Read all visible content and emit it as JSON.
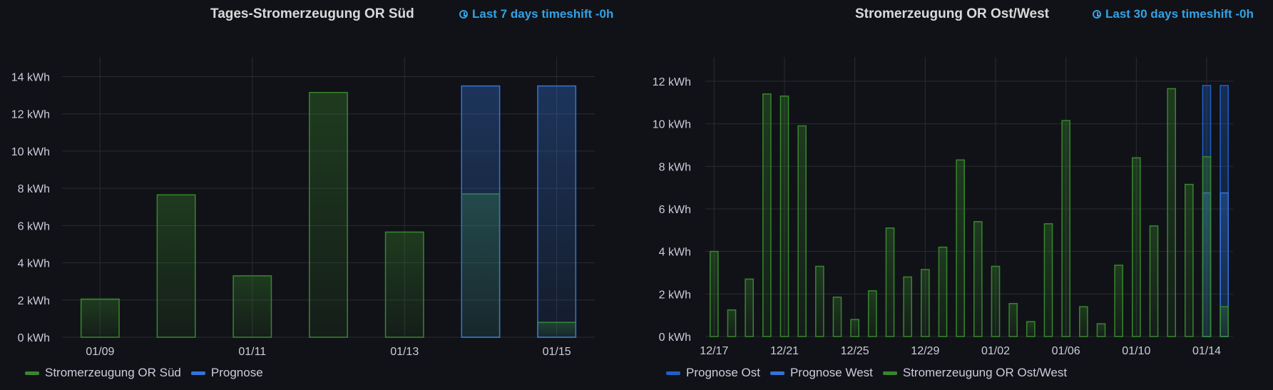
{
  "panels": [
    {
      "title": "Tages-Stromerzeugung OR Süd",
      "timeshift": "Last 7 days timeshift -0h",
      "legend": [
        {
          "label": "Stromerzeugung OR Süd",
          "color": "#37872d"
        },
        {
          "label": "Prognose",
          "color": "#3274d9"
        }
      ]
    },
    {
      "title": "Stromerzeugung OR Ost/West",
      "timeshift": "Last 30 days timeshift -0h",
      "legend": [
        {
          "label": "Prognose Ost",
          "color": "#1f60c4"
        },
        {
          "label": "Prognose West",
          "color": "#3274d9"
        },
        {
          "label": "Stromerzeugung OR Ost/West",
          "color": "#37872d"
        }
      ]
    }
  ],
  "chart_data": [
    {
      "type": "bar",
      "title": "Tages-Stromerzeugung OR Süd",
      "ylim": [
        0,
        14
      ],
      "unit": "kWh",
      "yticks": [
        "0 kWh",
        "2 kWh",
        "4 kWh",
        "6 kWh",
        "8 kWh",
        "10 kWh",
        "12 kWh",
        "14 kWh"
      ],
      "xticks": [
        "01/09",
        "01/11",
        "01/13",
        "01/15"
      ],
      "categories": [
        "01/09",
        "01/10",
        "01/11",
        "01/12",
        "01/13",
        "01/14",
        "01/15"
      ],
      "series": [
        {
          "name": "Stromerzeugung OR Süd",
          "color": "#37872d",
          "values": [
            2.05,
            7.65,
            3.3,
            13.15,
            5.65,
            7.7,
            0.8
          ]
        },
        {
          "name": "Prognose",
          "color": "#3274d9",
          "values": [
            null,
            null,
            null,
            null,
            null,
            13.5,
            13.5
          ]
        }
      ],
      "grid": true,
      "legend_position": "bottom-left"
    },
    {
      "type": "bar",
      "title": "Stromerzeugung OR Ost/West",
      "ylim": [
        0,
        12.5
      ],
      "unit": "kWh",
      "yticks": [
        "0 kWh",
        "2 kWh",
        "4 kWh",
        "6 kWh",
        "8 kWh",
        "10 kWh",
        "12 kWh"
      ],
      "xticks": [
        "12/17",
        "12/21",
        "12/25",
        "12/29",
        "01/02",
        "01/06",
        "01/10",
        "01/14"
      ],
      "categories": [
        "12/17",
        "12/18",
        "12/19",
        "12/20",
        "12/21",
        "12/22",
        "12/23",
        "12/24",
        "12/25",
        "12/26",
        "12/27",
        "12/28",
        "12/29",
        "12/30",
        "12/31",
        "01/01",
        "01/02",
        "01/03",
        "01/04",
        "01/05",
        "01/06",
        "01/07",
        "01/08",
        "01/09",
        "01/10",
        "01/11",
        "01/12",
        "01/13",
        "01/14",
        "01/15"
      ],
      "series": [
        {
          "name": "Prognose Ost",
          "color": "#1f60c4",
          "values": [
            null,
            null,
            null,
            null,
            null,
            null,
            null,
            null,
            null,
            null,
            null,
            null,
            null,
            null,
            null,
            null,
            null,
            null,
            null,
            null,
            null,
            null,
            null,
            null,
            null,
            null,
            null,
            null,
            11.8,
            11.8
          ]
        },
        {
          "name": "Prognose West",
          "color": "#3274d9",
          "values": [
            null,
            null,
            null,
            null,
            null,
            null,
            null,
            null,
            null,
            null,
            null,
            null,
            null,
            null,
            null,
            null,
            null,
            null,
            null,
            null,
            null,
            null,
            null,
            null,
            null,
            null,
            null,
            null,
            6.75,
            6.75
          ]
        },
        {
          "name": "Stromerzeugung OR Ost/West",
          "color": "#37872d",
          "values": [
            4.0,
            1.25,
            2.7,
            11.4,
            11.3,
            9.9,
            3.3,
            1.85,
            0.8,
            2.15,
            5.1,
            2.8,
            3.15,
            4.2,
            8.3,
            5.4,
            3.3,
            1.55,
            0.7,
            5.3,
            10.15,
            1.4,
            0.6,
            3.35,
            8.4,
            5.2,
            11.65,
            7.15,
            8.45,
            1.4
          ]
        }
      ],
      "grid": true,
      "legend_position": "bottom-left"
    }
  ]
}
